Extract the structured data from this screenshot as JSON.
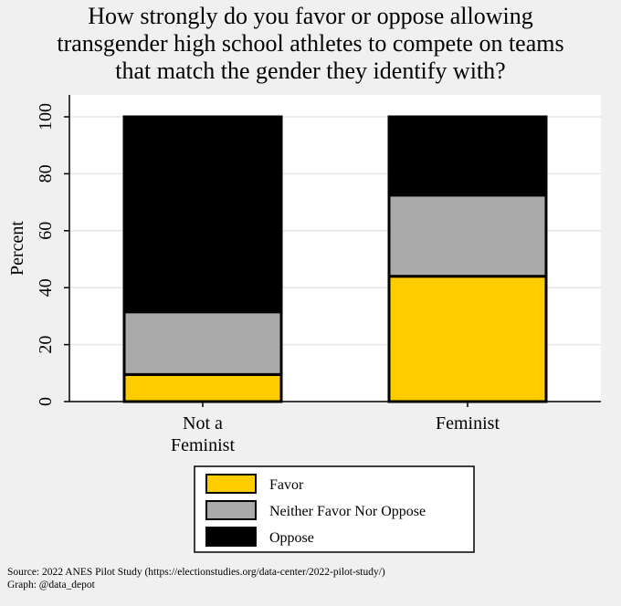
{
  "chart_data": {
    "type": "stacked-bar",
    "title": [
      "How strongly do you favor or oppose allowing",
      "transgender high school athletes to compete on teams",
      "that match the gender they identify with?"
    ],
    "ylabel": "Percent",
    "ylim": [
      0,
      100
    ],
    "yticks": [
      0,
      20,
      40,
      60,
      80,
      100
    ],
    "grid": true,
    "categories": [
      [
        "Not a",
        "Feminist"
      ],
      [
        "Feminist"
      ]
    ],
    "series": [
      {
        "name": "Favor",
        "color": "#ffcc00",
        "values": [
          9.5,
          44
        ]
      },
      {
        "name": "Neither Favor Nor Oppose",
        "color": "#aaaaaa",
        "values": [
          22,
          28.5
        ]
      },
      {
        "name": "Oppose",
        "color": "#000000",
        "values": [
          68.5,
          27.5
        ]
      }
    ],
    "legend_position": "bottom"
  },
  "footer": {
    "source": "Source: 2022 ANES Pilot Study (https://electionstudies.org/data-center/2022-pilot-study/)",
    "graph": "Graph: @data_depot"
  }
}
